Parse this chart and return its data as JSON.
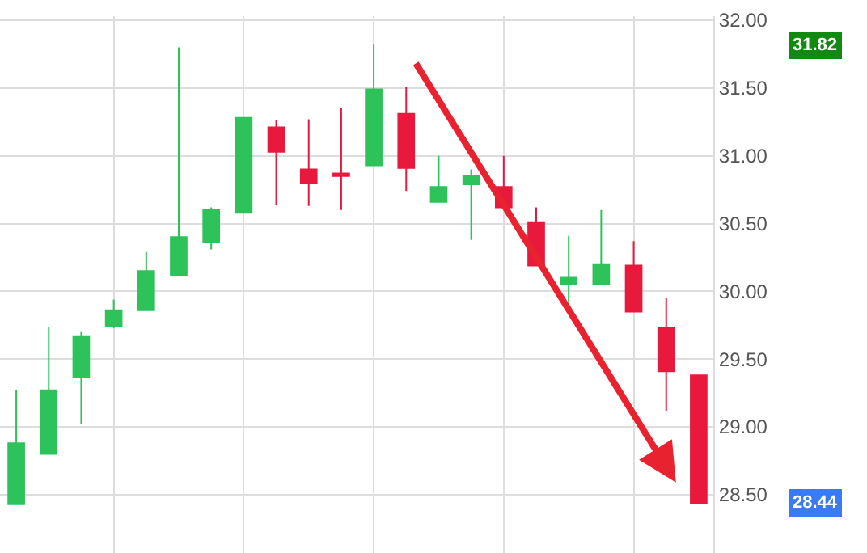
{
  "chart_data": {
    "type": "candlestick",
    "categories": [
      null,
      null,
      null,
      null,
      null,
      null,
      null,
      null,
      null,
      null,
      null,
      null,
      null,
      null,
      null,
      null,
      null,
      null,
      null,
      null,
      null,
      null
    ],
    "ohlc": [
      [
        28.43,
        29.27,
        28.43,
        28.88
      ],
      [
        28.8,
        29.74,
        28.8,
        29.27
      ],
      [
        29.37,
        29.7,
        29.02,
        29.67
      ],
      [
        29.74,
        29.94,
        29.73,
        29.86
      ],
      [
        29.86,
        30.29,
        29.86,
        30.15
      ],
      [
        30.12,
        31.8,
        30.12,
        30.4
      ],
      [
        30.36,
        30.62,
        30.31,
        30.6
      ],
      [
        30.58,
        31.28,
        30.58,
        31.28
      ],
      [
        31.21,
        31.26,
        30.64,
        31.03
      ],
      [
        30.9,
        31.27,
        30.63,
        30.8
      ],
      [
        30.87,
        31.35,
        30.6,
        30.85
      ],
      [
        30.93,
        31.82,
        30.93,
        31.49
      ],
      [
        31.31,
        31.51,
        30.74,
        30.91
      ],
      [
        30.66,
        31.0,
        30.66,
        30.77
      ],
      [
        30.79,
        30.9,
        30.38,
        30.85
      ],
      [
        30.77,
        31.0,
        30.62,
        30.62
      ],
      [
        30.51,
        30.62,
        30.19,
        30.19
      ],
      [
        30.05,
        30.41,
        29.92,
        30.1
      ],
      [
        30.05,
        30.6,
        30.05,
        30.2
      ],
      [
        30.19,
        30.37,
        29.85,
        29.85
      ],
      [
        29.73,
        29.95,
        29.12,
        29.41
      ],
      [
        29.38,
        29.38,
        28.44,
        28.44
      ]
    ],
    "colors": [
      "#2dc25a",
      "#2dc25a",
      "#2dc25a",
      "#2dc25a",
      "#2dc25a",
      "#2dc25a",
      "#2dc25a",
      "#2dc25a",
      "#e8193c",
      "#e8193c",
      "#e8193c",
      "#2dc25a",
      "#e8193c",
      "#2dc25a",
      "#2dc25a",
      "#e8193c",
      "#e8193c",
      "#2dc25a",
      "#2dc25a",
      "#e8193c",
      "#e8193c",
      "#e8193c"
    ],
    "ylim": [
      28.07,
      32.03
    ],
    "yticks": [
      {
        "value": 28.5,
        "label": "28.50"
      },
      {
        "value": 29,
        "label": "29.00"
      },
      {
        "value": 29.5,
        "label": "29.50"
      },
      {
        "value": 30,
        "label": "30.00"
      },
      {
        "value": 30.5,
        "label": "30.50"
      },
      {
        "value": 31,
        "label": "31.00"
      },
      {
        "value": 31.5,
        "label": "31.50"
      },
      {
        "value": 32,
        "label": "32.00"
      }
    ],
    "grid": true,
    "tick_labels": "y",
    "annotations": [
      "31.82",
      "28.44"
    ]
  }
}
